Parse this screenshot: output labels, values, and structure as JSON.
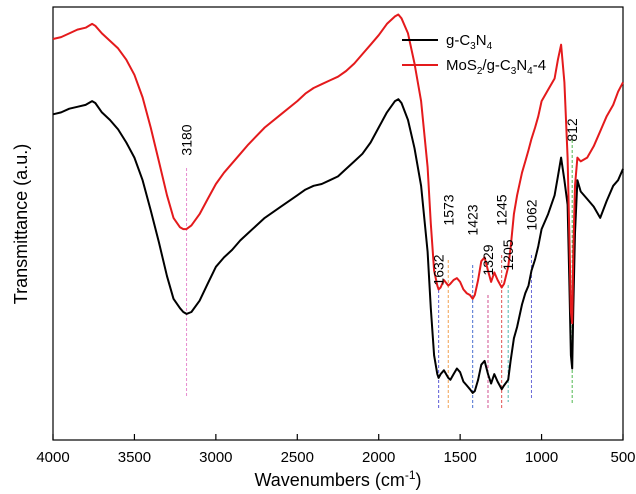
{
  "chart_data": {
    "type": "line",
    "xlabel_main": "Wavenumbers (cm",
    "xlabel_sup": "-1",
    "xlabel_tail": ")",
    "ylabel": "Transmittance (a.u.)",
    "xlim": [
      4000,
      500
    ],
    "x_reversed": true,
    "y_ticks_shown": false,
    "x_ticks": [
      4000,
      3500,
      3000,
      2500,
      2000,
      1500,
      1000,
      500
    ],
    "legend_position": "top-right",
    "series": [
      {
        "name": "g-C3N4",
        "color": "#000000",
        "x": [
          4000,
          3950,
          3900,
          3850,
          3800,
          3760,
          3740,
          3700,
          3650,
          3600,
          3550,
          3500,
          3450,
          3400,
          3350,
          3300,
          3260,
          3220,
          3200,
          3180,
          3150,
          3100,
          3050,
          3000,
          2950,
          2900,
          2850,
          2800,
          2700,
          2600,
          2500,
          2450,
          2400,
          2350,
          2300,
          2250,
          2200,
          2150,
          2100,
          2050,
          2000,
          1950,
          1900,
          1880,
          1860,
          1820,
          1780,
          1740,
          1700,
          1680,
          1660,
          1640,
          1632,
          1620,
          1600,
          1573,
          1560,
          1540,
          1520,
          1500,
          1480,
          1460,
          1440,
          1423,
          1410,
          1390,
          1370,
          1350,
          1329,
          1310,
          1290,
          1270,
          1245,
          1230,
          1205,
          1190,
          1170,
          1150,
          1120,
          1100,
          1080,
          1062,
          1040,
          1020,
          1000,
          960,
          920,
          900,
          880,
          860,
          840,
          830,
          820,
          812,
          805,
          795,
          780,
          760,
          720,
          680,
          640,
          600,
          560,
          530,
          500
        ],
        "y": [
          43,
          44,
          46,
          47,
          48,
          50,
          49,
          44,
          40,
          35,
          28,
          20,
          8,
          -8,
          -25,
          -43,
          -55,
          -60,
          -62,
          -63,
          -62,
          -56,
          -47,
          -38,
          -33,
          -29,
          -24,
          -20,
          -12,
          -6,
          0,
          3,
          5,
          6,
          8,
          10,
          14,
          18,
          22,
          28,
          36,
          44,
          50,
          51,
          49,
          40,
          25,
          5,
          -30,
          -60,
          -85,
          -95,
          -97,
          -95,
          -93,
          -97,
          -98,
          -95,
          -92,
          -94,
          -99,
          -101,
          -103,
          -105,
          -104,
          -98,
          -90,
          -88,
          -95,
          -100,
          -95,
          -99,
          -103,
          -101,
          -98,
          -88,
          -76,
          -70,
          -58,
          -52,
          -48,
          -40,
          -34,
          -27,
          -18,
          -10,
          0,
          10,
          20,
          8,
          -5,
          -45,
          -85,
          -92,
          -60,
          -20,
          8,
          2,
          -2,
          -6,
          -12,
          -3,
          5,
          8,
          14
        ]
      },
      {
        "name": "MoS2/g-C3N4-4",
        "color": "#e41a1c",
        "x": [
          4000,
          3950,
          3900,
          3850,
          3800,
          3760,
          3740,
          3700,
          3650,
          3600,
          3550,
          3500,
          3450,
          3400,
          3350,
          3300,
          3260,
          3220,
          3200,
          3180,
          3150,
          3100,
          3050,
          3000,
          2950,
          2900,
          2850,
          2800,
          2700,
          2600,
          2500,
          2450,
          2400,
          2350,
          2300,
          2250,
          2200,
          2150,
          2100,
          2050,
          2000,
          1950,
          1900,
          1880,
          1860,
          1820,
          1780,
          1740,
          1700,
          1680,
          1660,
          1640,
          1632,
          1620,
          1600,
          1573,
          1560,
          1540,
          1520,
          1500,
          1480,
          1460,
          1440,
          1423,
          1410,
          1390,
          1370,
          1350,
          1329,
          1310,
          1290,
          1270,
          1245,
          1230,
          1205,
          1190,
          1170,
          1150,
          1120,
          1100,
          1080,
          1062,
          1040,
          1020,
          1000,
          960,
          920,
          900,
          880,
          860,
          840,
          830,
          820,
          812,
          805,
          795,
          780,
          760,
          720,
          680,
          640,
          600,
          560,
          530,
          500
        ],
        "y": [
          83,
          84,
          86,
          88,
          89,
          91,
          90,
          86,
          82,
          78,
          72,
          64,
          52,
          36,
          18,
          0,
          -12,
          -17,
          -18,
          -18,
          -16,
          -10,
          -2,
          6,
          12,
          17,
          22,
          27,
          36,
          43,
          50,
          54,
          57,
          59,
          61,
          63,
          66,
          70,
          75,
          80,
          85,
          91,
          95,
          96,
          94,
          86,
          70,
          50,
          15,
          -15,
          -40,
          -48,
          -50,
          -49,
          -45,
          -48,
          -47,
          -45,
          -44,
          -46,
          -50,
          -52,
          -53,
          -55,
          -53,
          -45,
          -35,
          -33,
          -40,
          -46,
          -41,
          -45,
          -49,
          -47,
          -38,
          -28,
          -10,
          0,
          12,
          18,
          24,
          30,
          36,
          42,
          50,
          56,
          62,
          72,
          80,
          60,
          20,
          -20,
          -62,
          -68,
          -30,
          5,
          20,
          18,
          20,
          26,
          34,
          42,
          48,
          55,
          60
        ]
      }
    ],
    "peak_labels": [
      "3180",
      "1632",
      "1573",
      "1423",
      "1329",
      "1245",
      "1205",
      "1062",
      "812"
    ],
    "peak_positions": [
      3180,
      1632,
      1573,
      1423,
      1329,
      1245,
      1205,
      1062,
      812
    ],
    "peak_line_colors": [
      "#e88bd0",
      "#5b5bd6",
      "#f0a050",
      "#4a6fd0",
      "#d05090",
      "#e05050",
      "#50b8b0",
      "#6a6ad8",
      "#50b850"
    ]
  }
}
